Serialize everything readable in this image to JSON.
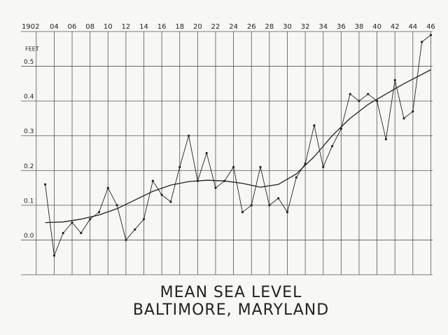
{
  "chart_data": {
    "type": "line",
    "title": "MEAN SEA LEVEL",
    "subtitle": "BALTIMORE, MARYLAND",
    "y_label": "FEET",
    "xlim": [
      1900.3,
      1946.2
    ],
    "xticks": [
      1902,
      {
        "value": 1904,
        "label": "04"
      },
      {
        "value": 1906,
        "label": "06"
      },
      {
        "value": 1908,
        "label": "08"
      },
      10,
      12,
      14,
      16,
      18,
      20,
      22,
      24,
      26,
      28,
      30,
      32,
      34,
      36,
      38,
      40,
      42,
      44,
      46
    ],
    "ylim": [
      -0.1,
      0.6
    ],
    "yticks": [
      {
        "value": 0,
        "label": "0.0"
      },
      0.1,
      0.2,
      0.3,
      0.4,
      0.5
    ],
    "grid": true,
    "series": [
      {
        "color": "#222222",
        "markers": true,
        "x": [
          1903,
          1904,
          1905,
          1906,
          1907,
          1908,
          1909,
          1910,
          1911,
          1912,
          1913,
          1914,
          1915,
          1916,
          1917,
          1918,
          1919,
          1920,
          1921,
          1922,
          1923,
          1924,
          1925,
          1926,
          1927,
          1928,
          1929,
          1930,
          1931,
          1932,
          1933,
          1934,
          1935,
          1936,
          1937,
          1938,
          1939,
          1940,
          1941,
          1942,
          1943,
          1944,
          1945,
          1946
        ],
        "values": [
          0.16,
          -0.045,
          0.02,
          0.05,
          0.02,
          0.06,
          0.08,
          0.15,
          0.1,
          0.0,
          0.03,
          0.06,
          0.17,
          0.13,
          0.11,
          0.21,
          0.3,
          0.17,
          0.25,
          0.15,
          0.17,
          0.21,
          0.08,
          0.1,
          0.21,
          0.1,
          0.12,
          0.08,
          0.18,
          0.22,
          0.33,
          0.21,
          0.27,
          0.32,
          0.42,
          0.4,
          0.42,
          0.4,
          0.29,
          0.46,
          0.35,
          0.37,
          0.57,
          0.59
        ]
      },
      {
        "color": "#222222",
        "markers": false,
        "x": [
          1903,
          1905,
          1907,
          1909,
          1911,
          1913,
          1915,
          1917,
          1919,
          1921,
          1923,
          1925,
          1927,
          1929,
          1931,
          1933,
          1935,
          1937,
          1939,
          1941,
          1943,
          1946
        ],
        "values": [
          0.05,
          0.052,
          0.06,
          0.072,
          0.09,
          0.115,
          0.14,
          0.158,
          0.168,
          0.172,
          0.17,
          0.163,
          0.152,
          0.16,
          0.19,
          0.24,
          0.3,
          0.35,
          0.39,
          0.42,
          0.45,
          0.49
        ]
      }
    ]
  }
}
